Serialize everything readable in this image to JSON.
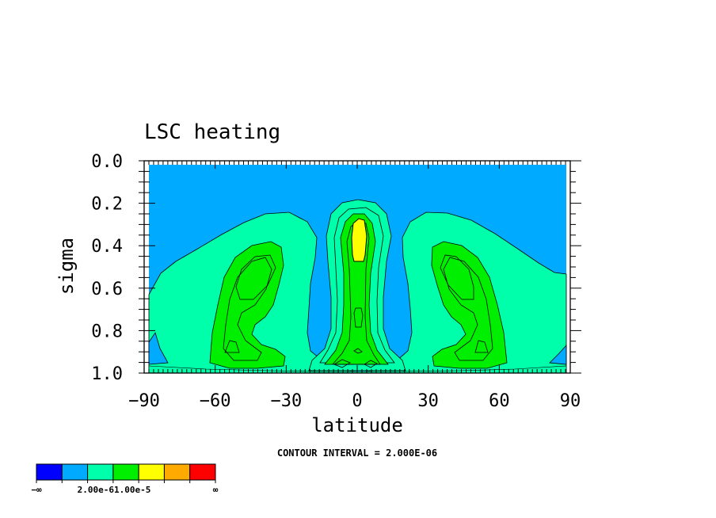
{
  "chart_data": {
    "type": "contour",
    "title": "LSC heating",
    "xlabel": "latitude",
    "ylabel": "sigma",
    "xlim": [
      -90,
      90
    ],
    "ylim": [
      1.0,
      0.0
    ],
    "x_ticks": [
      "−90",
      "−60",
      "−30",
      "0",
      "30",
      "60",
      "90"
    ],
    "y_ticks": [
      "0.0",
      "0.2",
      "0.4",
      "0.6",
      "0.8",
      "1.0"
    ],
    "x_tick_values": [
      -90,
      -60,
      -30,
      0,
      30,
      60,
      90
    ],
    "y_tick_values": [
      0.0,
      0.2,
      0.4,
      0.6,
      0.8,
      1.0
    ],
    "contour_interval_text": "CONTOUR INTERVAL = 2.000E-06",
    "colors": {
      "level_1": "#0000ff",
      "level_2": "#00aaff",
      "level_3": "#00ffaa",
      "level_4": "#00ee00",
      "level_5": "#ffff00",
      "level_6": "#ffaa00",
      "level_7": "#ff0000"
    },
    "colorbar": {
      "colors": [
        "#0000ff",
        "#00aaff",
        "#00ffaa",
        "#00ee00",
        "#ffff00",
        "#ffaa00",
        "#ff0000"
      ],
      "label_left": "−∞",
      "label_mid": "2.00e-61.00e-5",
      "label_right": "∞"
    }
  }
}
